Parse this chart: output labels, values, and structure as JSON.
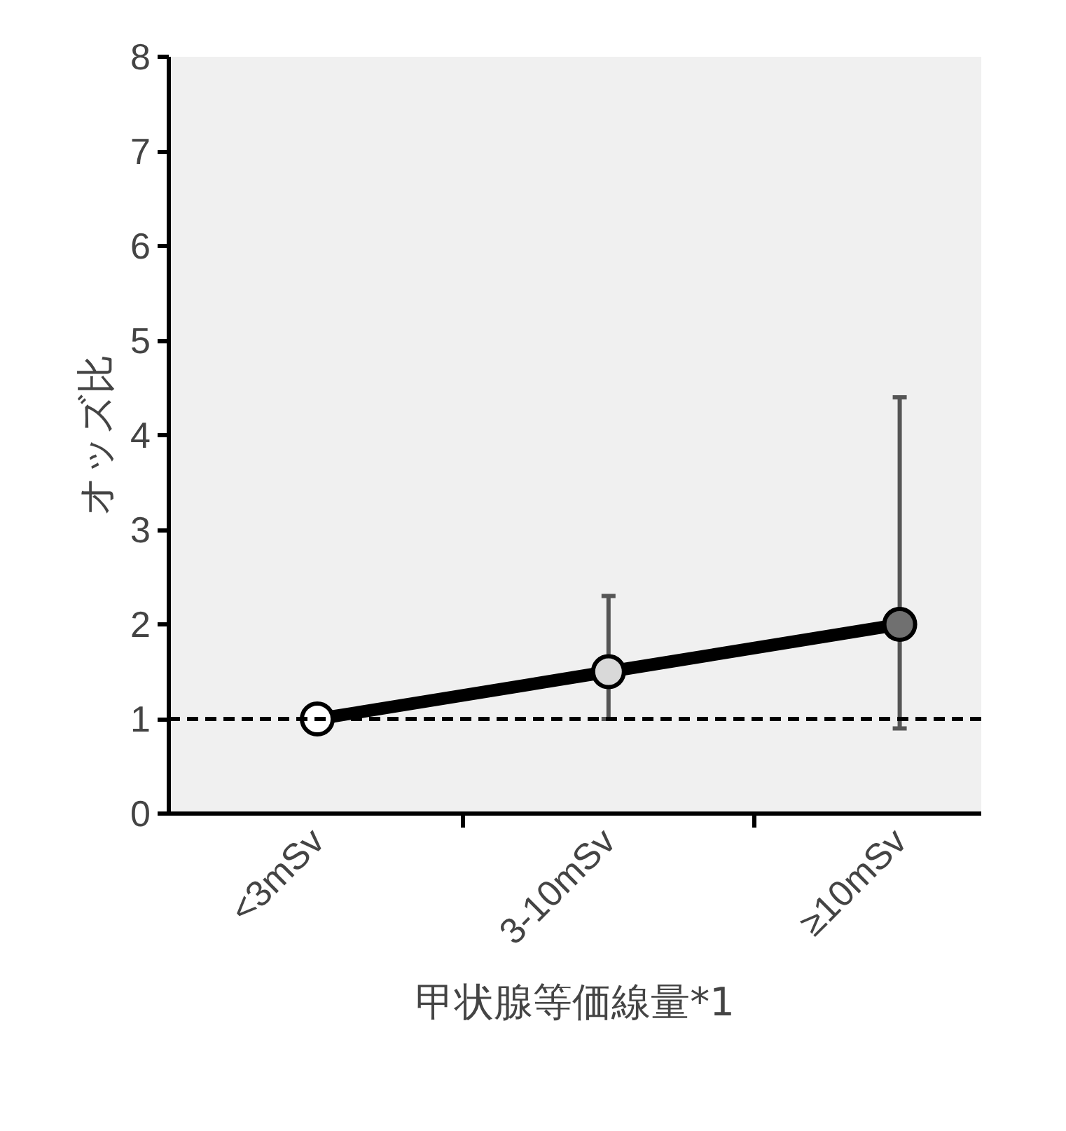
{
  "chart_data": {
    "type": "line",
    "xlabel": "甲状腺等価線量*1",
    "ylabel": "オッズ比",
    "categories": [
      "<3mSv",
      "3-10mSv",
      "≥10mSv"
    ],
    "values": [
      1,
      1.5,
      2
    ],
    "errors": [
      null,
      [
        1.0,
        2.3
      ],
      [
        0.9,
        4.4
      ]
    ],
    "color": "#000000",
    "colors": [
      "#ffffff",
      "#d9d9d9",
      "#707070"
    ],
    "marker": "circle",
    "line_style": "solid",
    "ylim": [
      0,
      8
    ],
    "yticks": [
      0,
      1,
      2,
      3,
      4,
      5,
      6,
      7,
      8
    ],
    "ref_lines": [
      {
        "axis": "y",
        "value": 1,
        "line_style": "dashed",
        "color": "#000000"
      }
    ],
    "grid": false
  }
}
